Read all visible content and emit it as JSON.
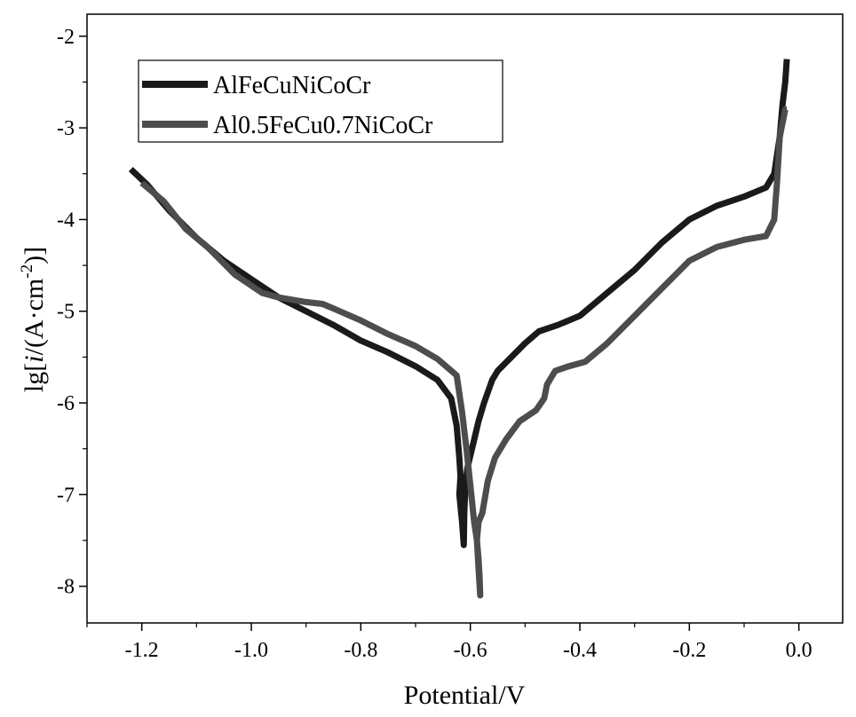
{
  "chart_data": {
    "type": "line",
    "xlabel": "Potential/V",
    "ylabel": {
      "prefix": "lg[",
      "italic": "i",
      "mid": "/(A·cm",
      "sup": "-2",
      "suffix": ")]"
    },
    "xlim": [
      -1.3,
      0.08
    ],
    "ylim": [
      -8.4,
      -1.76
    ],
    "xticks": [
      -1.2,
      -1.0,
      -0.8,
      -0.6,
      -0.4,
      -0.2,
      0.0
    ],
    "xtick_labels": [
      "-1.2",
      "-1.0",
      "-0.8",
      "-0.6",
      "-0.4",
      "-0.2",
      "0.0"
    ],
    "yticks": [
      -2,
      -3,
      -4,
      -5,
      -6,
      -7,
      -8
    ],
    "ytick_labels": [
      "-2",
      "-3",
      "-4",
      "-5",
      "-6",
      "-7",
      "-8"
    ],
    "grid": false,
    "legend_position": "top-left",
    "series": [
      {
        "name": "AlFeCuNiCoCr",
        "color": "#1a1a1a",
        "points": [
          [
            -1.22,
            -3.45
          ],
          [
            -1.19,
            -3.62
          ],
          [
            -1.15,
            -3.9
          ],
          [
            -1.1,
            -4.2
          ],
          [
            -1.05,
            -4.45
          ],
          [
            -1.0,
            -4.65
          ],
          [
            -0.95,
            -4.85
          ],
          [
            -0.9,
            -5.0
          ],
          [
            -0.85,
            -5.15
          ],
          [
            -0.8,
            -5.32
          ],
          [
            -0.75,
            -5.45
          ],
          [
            -0.7,
            -5.6
          ],
          [
            -0.66,
            -5.75
          ],
          [
            -0.635,
            -5.95
          ],
          [
            -0.625,
            -6.25
          ],
          [
            -0.62,
            -6.6
          ],
          [
            -0.618,
            -6.8
          ],
          [
            -0.62,
            -7.0
          ],
          [
            -0.615,
            -7.3
          ],
          [
            -0.612,
            -7.55
          ],
          [
            -0.611,
            -7.2
          ],
          [
            -0.609,
            -6.9
          ],
          [
            -0.605,
            -6.7
          ],
          [
            -0.595,
            -6.45
          ],
          [
            -0.585,
            -6.2
          ],
          [
            -0.575,
            -6.0
          ],
          [
            -0.56,
            -5.75
          ],
          [
            -0.55,
            -5.65
          ],
          [
            -0.525,
            -5.5
          ],
          [
            -0.5,
            -5.35
          ],
          [
            -0.475,
            -5.22
          ],
          [
            -0.44,
            -5.15
          ],
          [
            -0.4,
            -5.05
          ],
          [
            -0.35,
            -4.8
          ],
          [
            -0.3,
            -4.55
          ],
          [
            -0.25,
            -4.25
          ],
          [
            -0.2,
            -4.0
          ],
          [
            -0.15,
            -3.85
          ],
          [
            -0.1,
            -3.75
          ],
          [
            -0.06,
            -3.65
          ],
          [
            -0.045,
            -3.5
          ],
          [
            -0.035,
            -3.1
          ],
          [
            -0.03,
            -2.75
          ],
          [
            -0.025,
            -2.5
          ],
          [
            -0.022,
            -2.25
          ]
        ]
      },
      {
        "name": "Al0.5FeCu0.7NiCoCr",
        "color": "#4d4d4d",
        "points": [
          [
            -1.2,
            -3.6
          ],
          [
            -1.16,
            -3.8
          ],
          [
            -1.12,
            -4.1
          ],
          [
            -1.08,
            -4.3
          ],
          [
            -1.03,
            -4.6
          ],
          [
            -0.98,
            -4.8
          ],
          [
            -0.95,
            -4.85
          ],
          [
            -0.9,
            -4.9
          ],
          [
            -0.87,
            -4.92
          ],
          [
            -0.85,
            -4.97
          ],
          [
            -0.8,
            -5.1
          ],
          [
            -0.75,
            -5.25
          ],
          [
            -0.7,
            -5.38
          ],
          [
            -0.66,
            -5.52
          ],
          [
            -0.625,
            -5.7
          ],
          [
            -0.615,
            -6.1
          ],
          [
            -0.607,
            -6.5
          ],
          [
            -0.6,
            -6.9
          ],
          [
            -0.593,
            -7.3
          ],
          [
            -0.588,
            -7.5
          ],
          [
            -0.585,
            -7.7
          ],
          [
            -0.583,
            -7.9
          ],
          [
            -0.582,
            -8.1
          ],
          [
            -0.585,
            -7.8
          ],
          [
            -0.588,
            -7.5
          ],
          [
            -0.585,
            -7.3
          ],
          [
            -0.578,
            -7.2
          ],
          [
            -0.568,
            -6.85
          ],
          [
            -0.555,
            -6.6
          ],
          [
            -0.535,
            -6.4
          ],
          [
            -0.51,
            -6.2
          ],
          [
            -0.48,
            -6.08
          ],
          [
            -0.465,
            -5.95
          ],
          [
            -0.46,
            -5.8
          ],
          [
            -0.445,
            -5.65
          ],
          [
            -0.42,
            -5.6
          ],
          [
            -0.39,
            -5.55
          ],
          [
            -0.35,
            -5.35
          ],
          [
            -0.3,
            -5.05
          ],
          [
            -0.25,
            -4.75
          ],
          [
            -0.2,
            -4.45
          ],
          [
            -0.15,
            -4.3
          ],
          [
            -0.1,
            -4.22
          ],
          [
            -0.06,
            -4.18
          ],
          [
            -0.045,
            -4.0
          ],
          [
            -0.04,
            -3.6
          ],
          [
            -0.035,
            -3.1
          ],
          [
            -0.025,
            -2.8
          ],
          [
            -0.022,
            -2.8
          ]
        ]
      }
    ]
  }
}
